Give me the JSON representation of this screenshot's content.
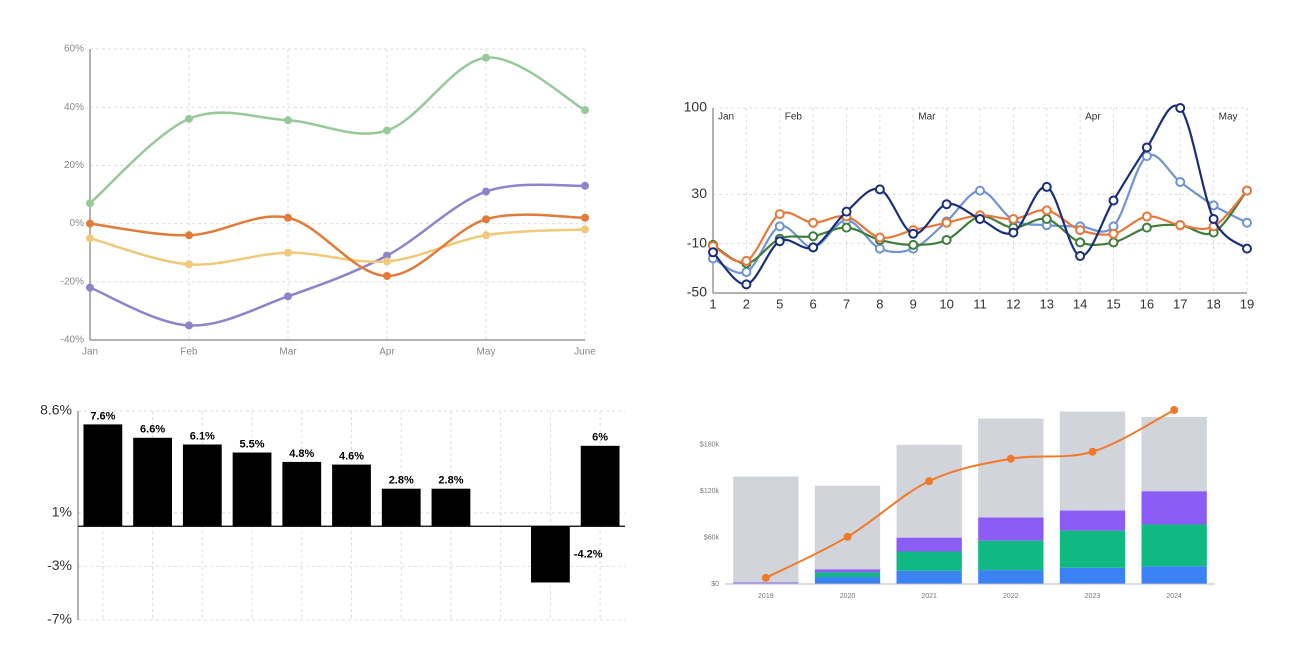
{
  "chart_data": [
    {
      "type": "line",
      "smooth": true,
      "markers": "filled",
      "categories": [
        "Jan",
        "Feb",
        "Mar",
        "Apr",
        "May",
        "June"
      ],
      "ylim": [
        -40,
        60
      ],
      "yticks": [
        {
          "value": -40,
          "label": "-40%"
        },
        {
          "value": -20,
          "label": "-20%"
        },
        {
          "value": 0,
          "label": "0%"
        },
        {
          "value": 20,
          "label": "20%"
        },
        {
          "value": 40,
          "label": "40%"
        },
        {
          "value": 60,
          "label": "60%"
        }
      ],
      "grid": true,
      "series": [
        {
          "color": "#97c99a",
          "values": [
            7,
            36,
            35.5,
            32,
            57,
            39
          ]
        },
        {
          "color": "#8f84cc",
          "values": [
            -22,
            -35,
            -25,
            -11,
            11,
            13
          ]
        },
        {
          "color": "#f0c97a",
          "values": [
            -5,
            -14,
            -10,
            -13,
            -4,
            -2
          ]
        },
        {
          "color": "#e07b39",
          "values": [
            0,
            -4,
            2,
            -18,
            1.5,
            2
          ]
        }
      ]
    },
    {
      "type": "line",
      "smooth": true,
      "markers": "open",
      "categories": [
        "1",
        "2",
        "5",
        "6",
        "7",
        "8",
        "9",
        "10",
        "11",
        "12",
        "13",
        "14",
        "15",
        "16",
        "17",
        "18",
        "19"
      ],
      "ylim": [
        -50,
        100
      ],
      "yticks": [
        -50,
        -10,
        30,
        100
      ],
      "grid": true,
      "annotations": [
        {
          "text": "Jan",
          "category": "1"
        },
        {
          "text": "Feb",
          "category": "5"
        },
        {
          "text": "Mar",
          "category": "9"
        },
        {
          "text": "Apr",
          "category": "14"
        },
        {
          "text": "May",
          "category": "18"
        }
      ],
      "series": [
        {
          "color": "#6f93d6",
          "values": [
            -22,
            -33,
            4,
            -13,
            9,
            -14,
            -14,
            8,
            33,
            9,
            5,
            4,
            4,
            61,
            40,
            21,
            7
          ]
        },
        {
          "color": "#3e7d3a",
          "values": [
            -11,
            -26,
            -6,
            -4,
            3,
            -7,
            -11,
            -7,
            12,
            3,
            10,
            -9,
            -9,
            3,
            5,
            -1,
            33
          ]
        },
        {
          "color": "#e8773a",
          "values": [
            -12,
            -24,
            14,
            7,
            12,
            -5,
            1,
            7,
            13,
            10,
            17,
            1,
            -2,
            12,
            5,
            4,
            33
          ]
        },
        {
          "color": "#1a2f7a",
          "values": [
            -17,
            -43,
            -8,
            -13,
            16,
            34,
            -2,
            22,
            10,
            -1,
            36,
            -20,
            25,
            68,
            100,
            10,
            -14
          ]
        }
      ]
    },
    {
      "type": "bar",
      "categories": [
        null,
        null,
        null,
        null,
        null,
        null,
        null,
        null,
        null,
        null,
        null
      ],
      "values": [
        7.6,
        6.6,
        6.1,
        5.5,
        4.8,
        4.6,
        2.8,
        2.8,
        null,
        -4.2,
        6
      ],
      "value_labels": [
        "7.6%",
        "6.6%",
        "6.1%",
        "5.5%",
        "4.8%",
        "4.6%",
        "2.8%",
        "2.8%",
        null,
        "-4.2%",
        "6%"
      ],
      "color": "#000000",
      "ylim": [
        -7,
        8.6
      ],
      "yticks": [
        {
          "value": -7,
          "label": "-7%"
        },
        {
          "value": -3,
          "label": "-3%"
        },
        {
          "value": 1,
          "label": "1%"
        },
        {
          "value": 8.6,
          "label": "8.6%"
        }
      ],
      "grid": true
    },
    {
      "type": "bar",
      "stacked": true,
      "smooth": true,
      "markers": "filled",
      "categories": [
        "2019",
        "2020",
        "2021",
        "2022",
        "2023",
        "2024"
      ],
      "ylim": [
        0,
        225000
      ],
      "yticks": [
        {
          "value": 0,
          "label": "$0"
        },
        {
          "value": 60000,
          "label": "$60k"
        },
        {
          "value": 120000,
          "label": "$120k"
        },
        {
          "value": 180000,
          "label": "$180k"
        }
      ],
      "grid": false,
      "series": [
        {
          "color": "#3b82f6",
          "values": [
            1000,
            9000,
            17000,
            18000,
            21000,
            23000
          ]
        },
        {
          "color": "#10b981",
          "values": [
            0,
            6000,
            25000,
            38000,
            48000,
            54000
          ]
        },
        {
          "color": "#8b5cf6",
          "values": [
            1000,
            4000,
            18000,
            30000,
            26000,
            43000
          ]
        },
        {
          "color": "#d1d5db",
          "values": [
            137000,
            108000,
            120000,
            128000,
            128000,
            96000
          ]
        },
        {
          "type": "line",
          "color": "#f07a2a",
          "values": [
            8000,
            61000,
            133000,
            162000,
            171000,
            225000
          ]
        }
      ]
    }
  ]
}
